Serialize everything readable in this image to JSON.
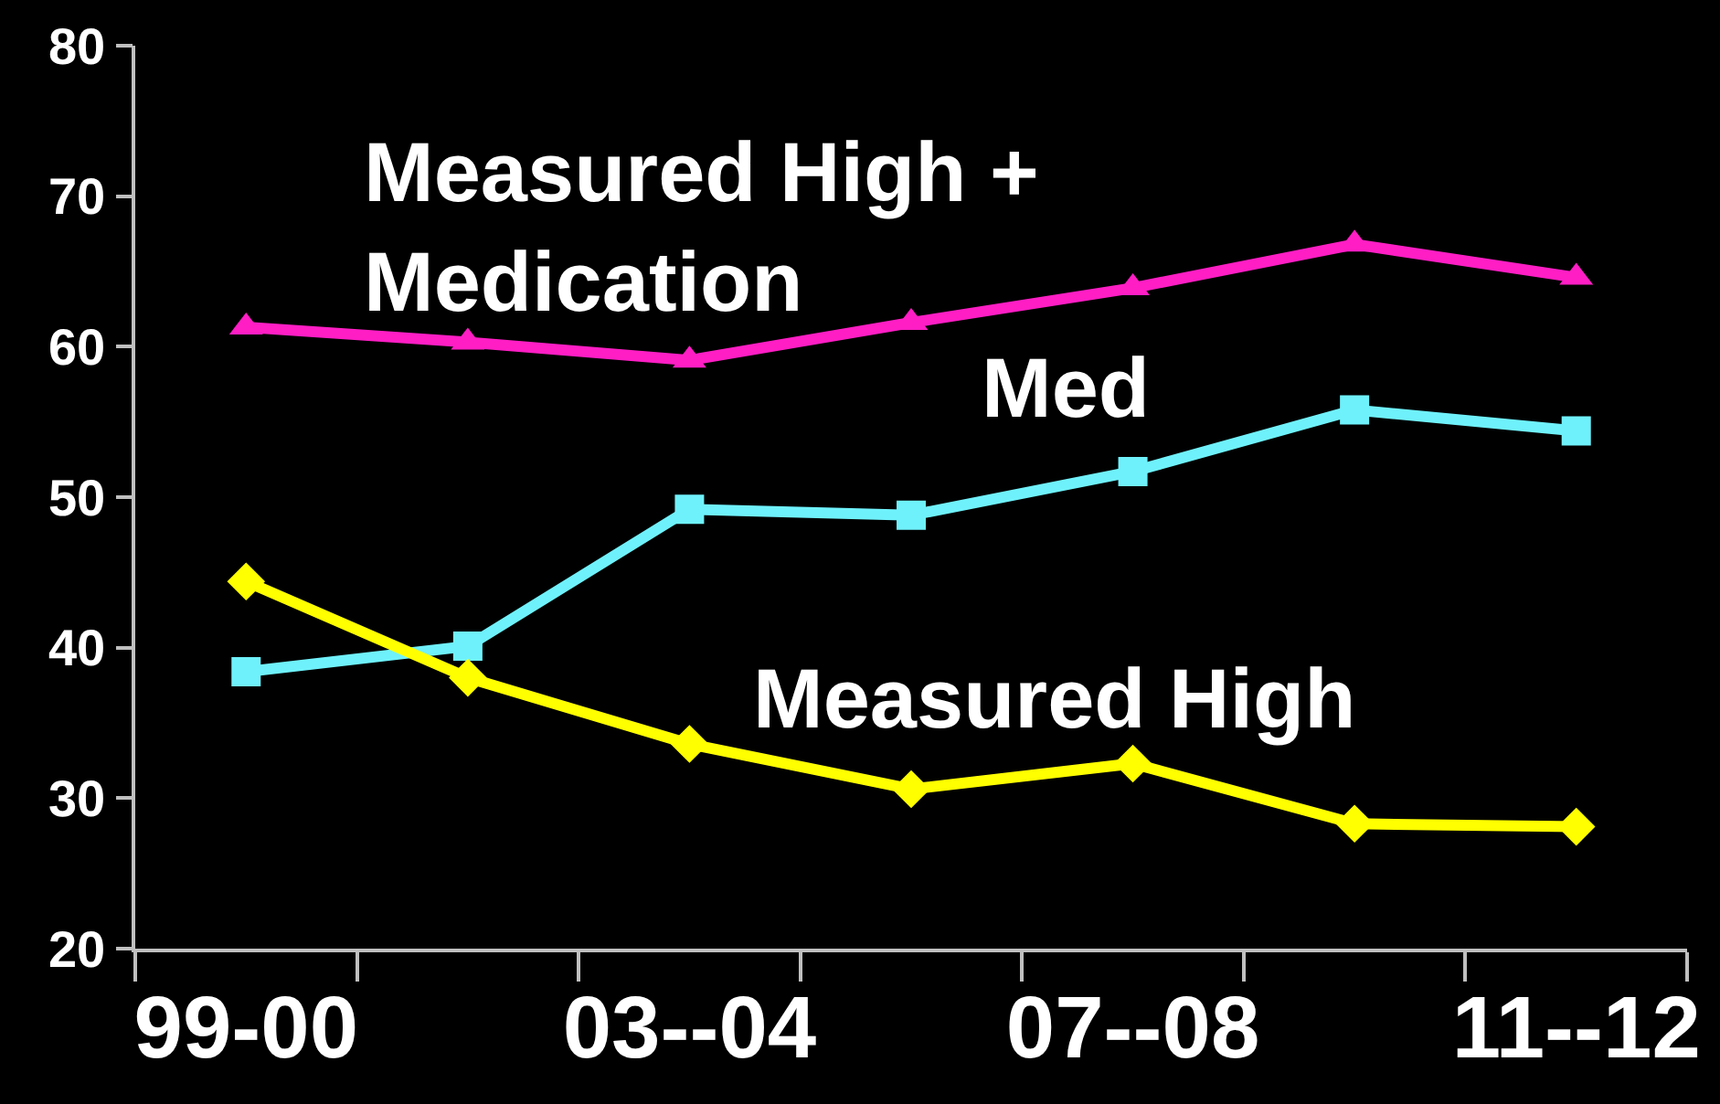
{
  "chart_data": {
    "type": "line",
    "categories": [
      "99-00",
      null,
      "03--04",
      null,
      "07--08",
      null,
      "11--12"
    ],
    "ylim": [
      20,
      80
    ],
    "yticks": [
      20,
      30,
      40,
      50,
      60,
      70,
      80
    ],
    "series": [
      {
        "name": "Measured High + Medication",
        "color": "#ff1ec4",
        "marker": "triangle",
        "values": [
          61.3,
          60.3,
          59.1,
          61.6,
          63.9,
          66.8,
          64.6
        ]
      },
      {
        "name": "Med",
        "color": "#6ff1fb",
        "marker": "square",
        "values": [
          38.4,
          40.1,
          49.2,
          48.8,
          51.7,
          55.8,
          54.4
        ]
      },
      {
        "name": "Measured High",
        "color": "#ffff00",
        "marker": "diamond",
        "values": [
          44.4,
          38.0,
          33.6,
          30.6,
          32.3,
          28.3,
          28.1
        ]
      }
    ]
  }
}
